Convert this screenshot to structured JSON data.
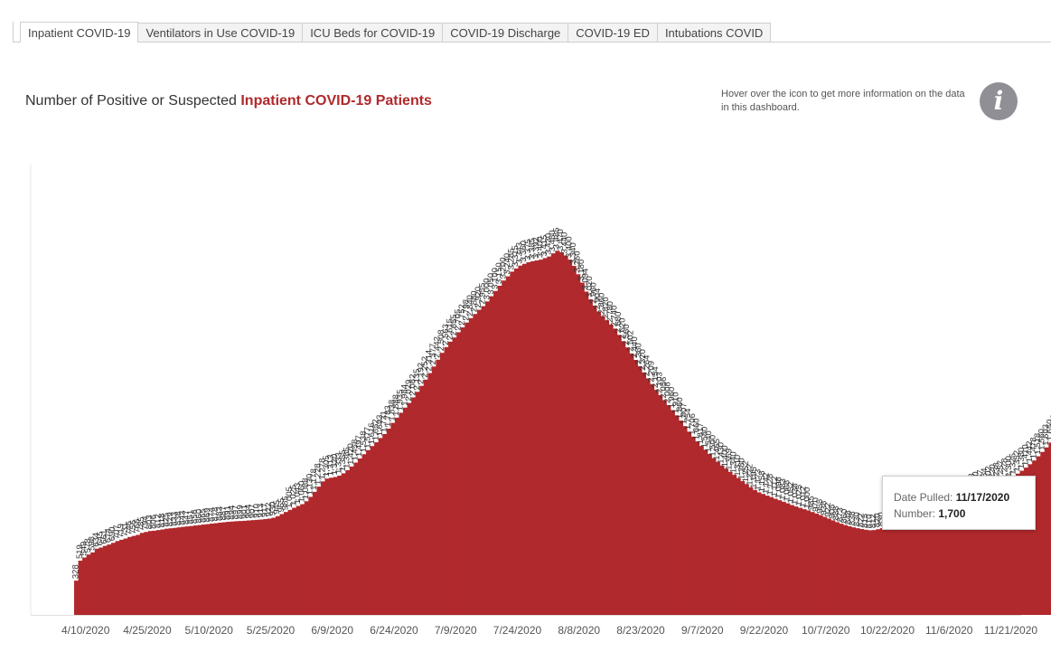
{
  "tabs": [
    {
      "label": "Inpatient COVID-19",
      "active": true
    },
    {
      "label": "Ventilators in Use COVID-19",
      "active": false
    },
    {
      "label": "ICU Beds for COVID-19",
      "active": false
    },
    {
      "label": "COVID-19 Discharge",
      "active": false
    },
    {
      "label": "COVID-19 ED",
      "active": false
    },
    {
      "label": "Intubations COVID",
      "active": false
    }
  ],
  "header": {
    "title_prefix": "Number of Positive or Suspected",
    "title_highlight": "Inpatient COVID-19 Patients",
    "hover_note": "Hover over the icon to get more information on the data in this dashboard.",
    "info_icon": "i"
  },
  "tooltip": {
    "date_label": "Date Pulled:",
    "date_value": "11/17/2020",
    "number_label": "Number:",
    "number_value": "1,700"
  },
  "chart_data": {
    "type": "bar",
    "title": "",
    "xlabel": "",
    "ylabel": "",
    "ylim": [
      0,
      4500
    ],
    "grid": false,
    "legend": "none",
    "bar_color": "#b0292c",
    "highlight_color": "#1a1a1a",
    "highlight_date": "11/17/2020",
    "x_tick_labels": [
      "4/10/2020",
      "4/25/2020",
      "5/10/2020",
      "5/25/2020",
      "6/9/2020",
      "6/24/2020",
      "7/9/2020",
      "7/24/2020",
      "8/8/2020",
      "8/23/2020",
      "9/7/2020",
      "9/22/2020",
      "10/7/2020",
      "10/22/2020",
      "11/6/2020",
      "11/21/2020"
    ],
    "start_date": "4/10/2020",
    "end_date": "11/17/2020",
    "values": [
      328,
      519,
      549,
      578,
      598,
      634,
      645,
      661,
      674,
      690,
      707,
      719,
      731,
      746,
      756,
      766,
      785,
      794,
      803,
      806,
      812,
      818,
      825,
      829,
      833,
      838,
      843,
      847,
      851,
      856,
      860,
      865,
      869,
      874,
      878,
      883,
      887,
      891,
      894,
      897,
      899,
      901,
      904,
      907,
      910,
      913,
      917,
      922,
      930,
      945,
      965,
      985,
      1005,
      1025,
      1043,
      1060,
      1088,
      1130,
      1178,
      1228,
      1278,
      1305,
      1313,
      1320,
      1333,
      1355,
      1385,
      1420,
      1458,
      1497,
      1538,
      1577,
      1616,
      1652,
      1693,
      1731,
      1783,
      1838,
      1888,
      1935,
      1984,
      2029,
      2082,
      2135,
      2192,
      2252,
      2314,
      2377,
      2442,
      2508,
      2563,
      2615,
      2655,
      2705,
      2752,
      2798,
      2840,
      2880,
      2920,
      2955,
      3000,
      3050,
      3100,
      3150,
      3200,
      3240,
      3285,
      3315,
      3343,
      3360,
      3375,
      3385,
      3392,
      3400,
      3415,
      3430,
      3460,
      3485,
      3470,
      3440,
      3400,
      3340,
      3260,
      3180,
      3094,
      3020,
      2960,
      2904,
      2860,
      2820,
      2780,
      2740,
      2680,
      2620,
      2560,
      2502,
      2440,
      2380,
      2320,
      2264,
      2209,
      2154,
      2103,
      2056,
      2008,
      1960,
      1910,
      1860,
      1807,
      1754,
      1706,
      1660,
      1617,
      1580,
      1540,
      1500,
      1465,
      1430,
      1400,
      1369,
      1340,
      1310,
      1280,
      1252,
      1222,
      1195,
      1173,
      1158,
      1142,
      1128,
      1112,
      1098,
      1083,
      1068,
      1052,
      1038,
      1025,
      1012,
      1000,
      985,
      970,
      955,
      938,
      922,
      905,
      888,
      873,
      860,
      848,
      838,
      830,
      822,
      815,
      810,
      812,
      820,
      830,
      842,
      855,
      865,
      872,
      880,
      890,
      902,
      915,
      928,
      942,
      955,
      968,
      982,
      995,
      1010,
      1025,
      1042,
      1060,
      1078,
      1097,
      1115,
      1133,
      1150,
      1167,
      1184,
      1202,
      1220,
      1238,
      1257,
      1278,
      1300,
      1325,
      1352,
      1380,
      1410,
      1442,
      1478,
      1518,
      1560,
      1603,
      1650,
      1700
    ]
  }
}
